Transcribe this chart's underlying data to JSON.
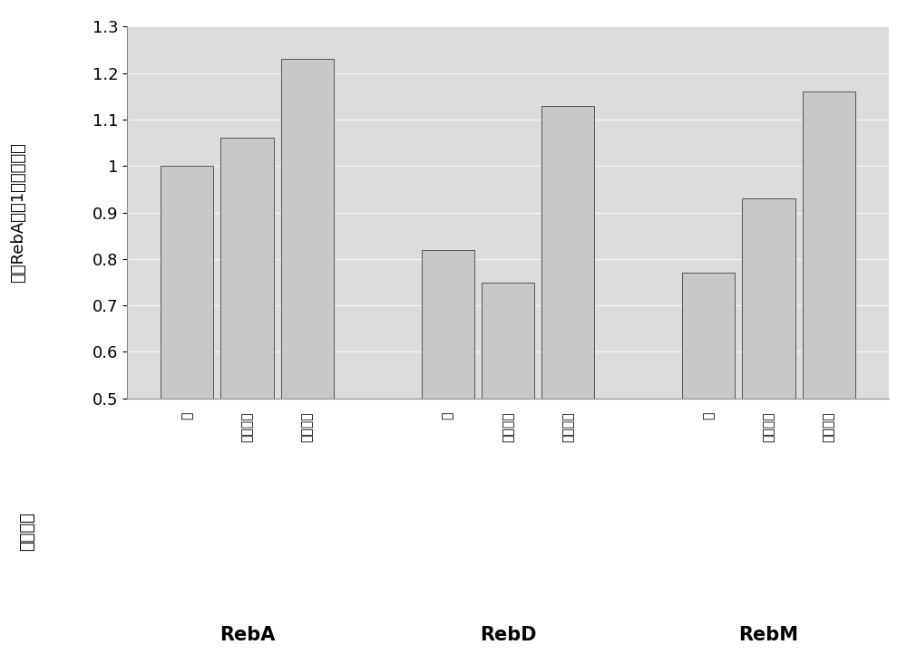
{
  "groups": [
    "RebA",
    "RebD",
    "RebM"
  ],
  "subgroup_labels": [
    "－",
    "和啡因酸",
    "和肉桂醇"
  ],
  "values": [
    [
      1.0,
      1.06,
      1.23
    ],
    [
      0.82,
      0.75,
      1.13
    ],
    [
      0.77,
      0.93,
      1.16
    ]
  ],
  "bar_color": "#c8c8c8",
  "bar_edge_color": "#555555",
  "ylabel_top": "（将RebA作为1时的比例）",
  "ylabel_bottom": "气泡液面",
  "ylim": [
    0.5,
    1.3
  ],
  "yticks": [
    0.5,
    0.6,
    0.7,
    0.8,
    0.9,
    1.0,
    1.1,
    1.2,
    1.3
  ],
  "background_color": "#ffffff",
  "plot_area_color": "#dcdcdc",
  "grid_color": "#f5f5f5",
  "tick_fontsize": 13,
  "group_label_fontsize": 15,
  "ylabel_fontsize": 13
}
